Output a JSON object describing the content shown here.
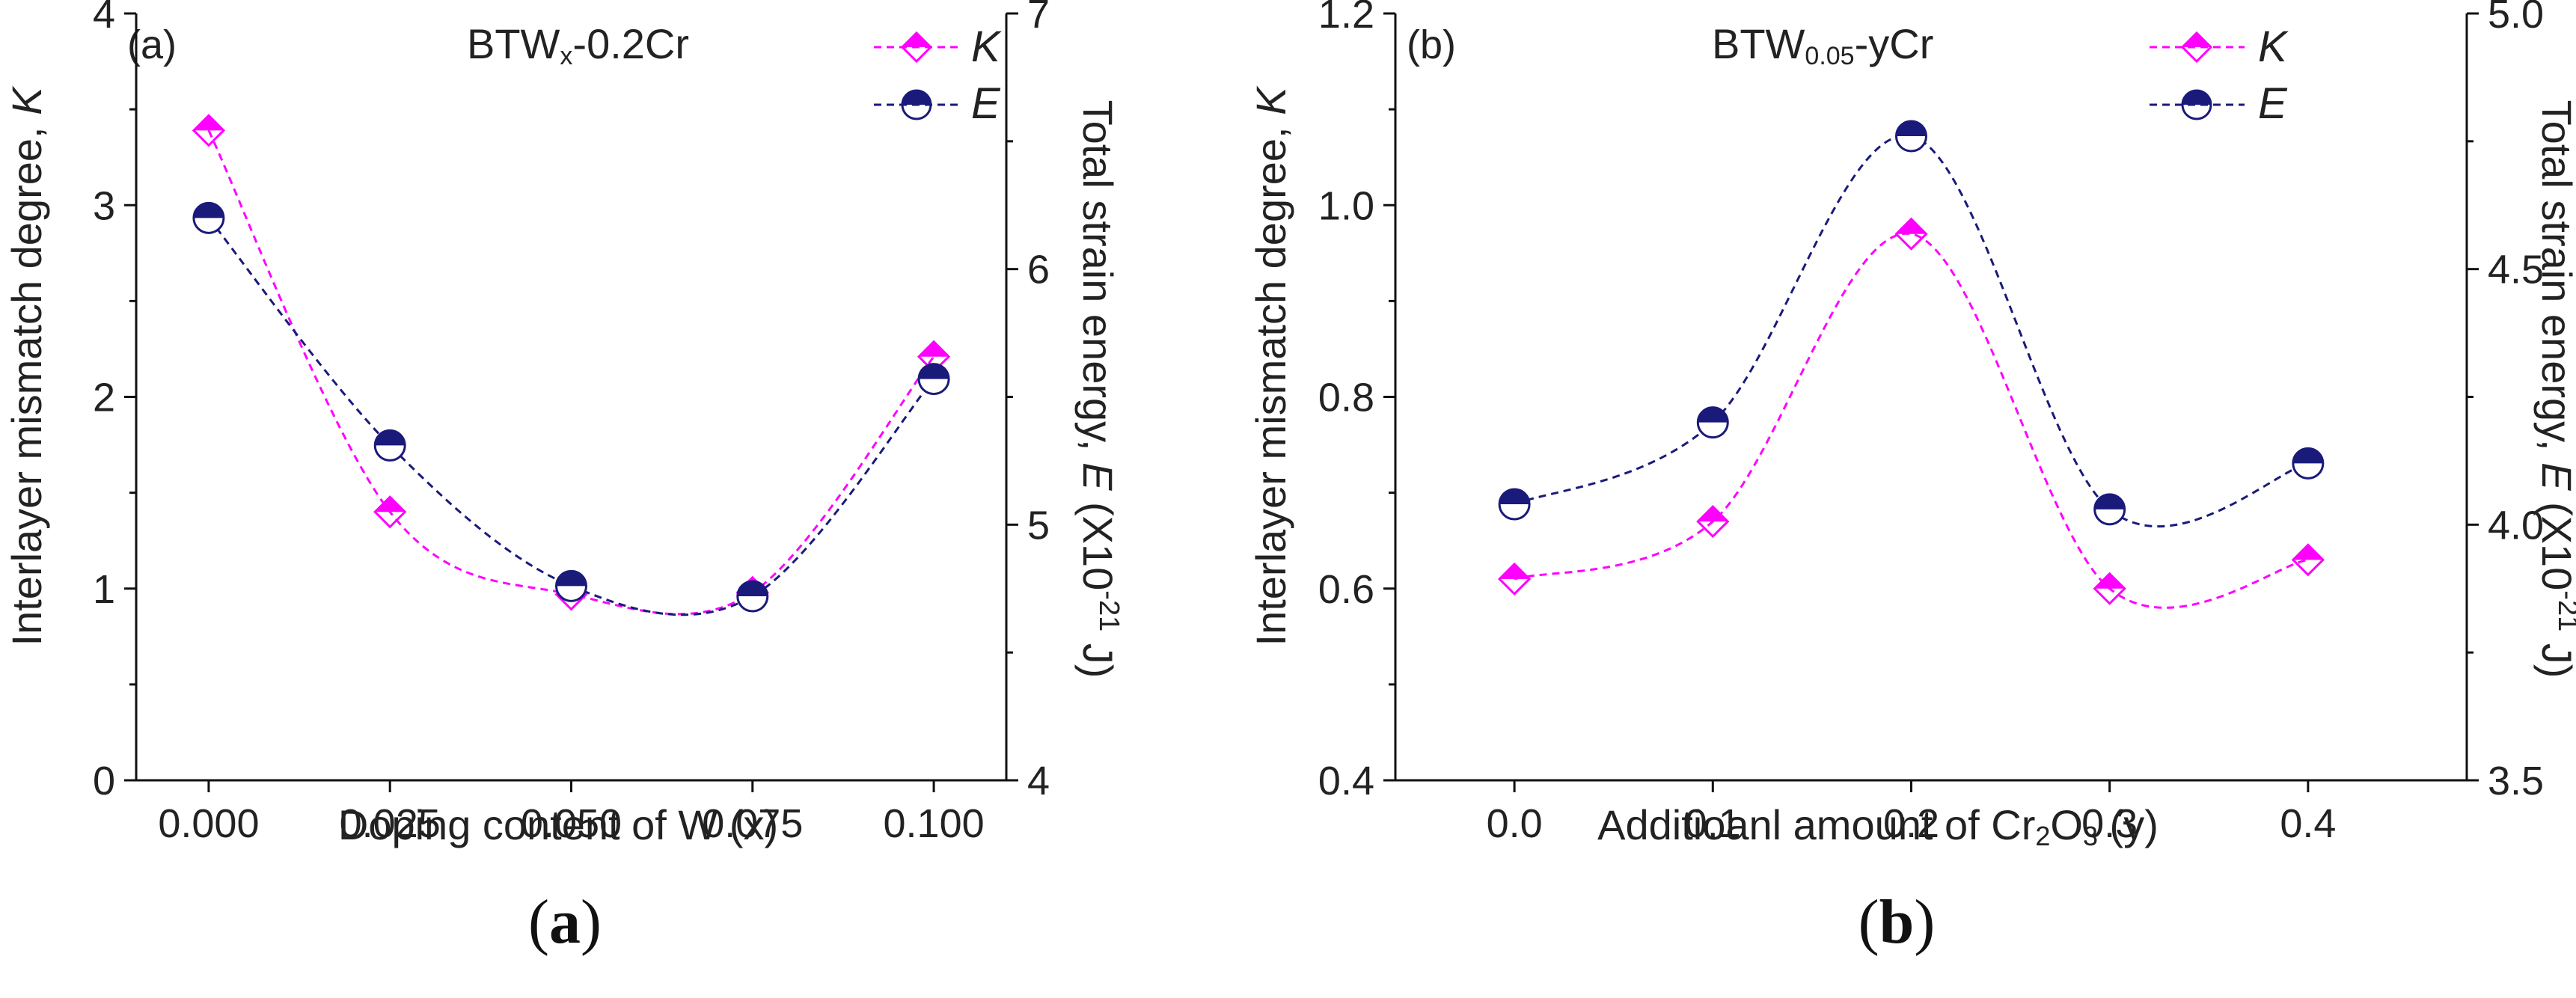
{
  "colors": {
    "K": "#ff00ff",
    "E": "#1a1a7a",
    "axis": "#111111"
  },
  "panels": [
    {
      "panel_label": "(a)",
      "annotation": {
        "main": "BTW",
        "sub": "x",
        "rest": "-0.2Cr"
      },
      "xlabel": "Doping content of W (x)",
      "ylabel_left": {
        "text": "Interlayer mismatch degree, ",
        "symbol": "K"
      },
      "ylabel_right": {
        "pre": "Total strain energy, ",
        "symbol": "E",
        "paren": " (X10",
        "exp": "-21",
        "unit": " J)"
      },
      "caption": {
        "open": "(",
        "letter": "a",
        "close": ")"
      },
      "legend": [
        {
          "label": "K",
          "series": "K"
        },
        {
          "label": "E",
          "series": "E"
        }
      ],
      "chart_data": {
        "type": "scatter",
        "x": [
          0.0,
          0.025,
          0.05,
          0.075,
          0.1
        ],
        "xtick_labels": [
          "0.000",
          "0.025",
          "0.050",
          "0.075",
          "0.100"
        ],
        "xlim": [
          -0.01,
          0.11
        ],
        "ylim_left": [
          0,
          4
        ],
        "yticks_left": [
          "0",
          "1",
          "2",
          "3",
          "4"
        ],
        "ylim_right": [
          4,
          7
        ],
        "yticks_right": [
          "4",
          "5",
          "6",
          "7"
        ],
        "series": [
          {
            "name": "K",
            "axis": "left",
            "marker": "half-diamond",
            "values": [
              3.39,
              1.4,
              0.97,
              0.98,
              2.21
            ]
          },
          {
            "name": "E",
            "axis": "right",
            "marker": "half-circle",
            "values": [
              6.2,
              5.31,
              4.76,
              4.72,
              5.57
            ]
          }
        ]
      }
    },
    {
      "panel_label": "(b)",
      "annotation": {
        "main": "BTW",
        "sub": "0.05",
        "rest": "-yCr"
      },
      "xlabel": {
        "pre": "Additioanl amount of Cr",
        "s1": "2",
        "mid": "O",
        "s2": "3",
        "post": " (y)"
      },
      "ylabel_left": {
        "text": "Interlayer mismatch degree, ",
        "symbol": "K"
      },
      "ylabel_right": {
        "pre": "Total strain energy, ",
        "symbol": "E",
        "paren": " (X10",
        "exp": "-21",
        "unit": " J)"
      },
      "caption": {
        "open": "(",
        "letter": "b",
        "close": ")"
      },
      "legend": [
        {
          "label": "K",
          "series": "K"
        },
        {
          "label": "E",
          "series": "E"
        }
      ],
      "chart_data": {
        "type": "scatter",
        "x": [
          0.0,
          0.1,
          0.2,
          0.3,
          0.4
        ],
        "xtick_labels": [
          "0.0",
          "0.1",
          "0.2",
          "0.3",
          "0.4"
        ],
        "xlim": [
          -0.06,
          0.48
        ],
        "ylim_left": [
          0.4,
          1.2
        ],
        "yticks_left": [
          "0.4",
          "0.6",
          "0.8",
          "1.0",
          "1.2"
        ],
        "ylim_right": [
          3.5,
          5.0
        ],
        "yticks_right": [
          "3.5",
          "4.0",
          "4.5",
          "5.0"
        ],
        "series": [
          {
            "name": "K",
            "axis": "left",
            "marker": "half-diamond",
            "values": [
              0.61,
              0.67,
              0.97,
              0.6,
              0.63
            ]
          },
          {
            "name": "E",
            "axis": "right",
            "marker": "half-circle",
            "values": [
              4.04,
              4.2,
              4.76,
              4.03,
              4.12
            ]
          }
        ]
      }
    }
  ]
}
